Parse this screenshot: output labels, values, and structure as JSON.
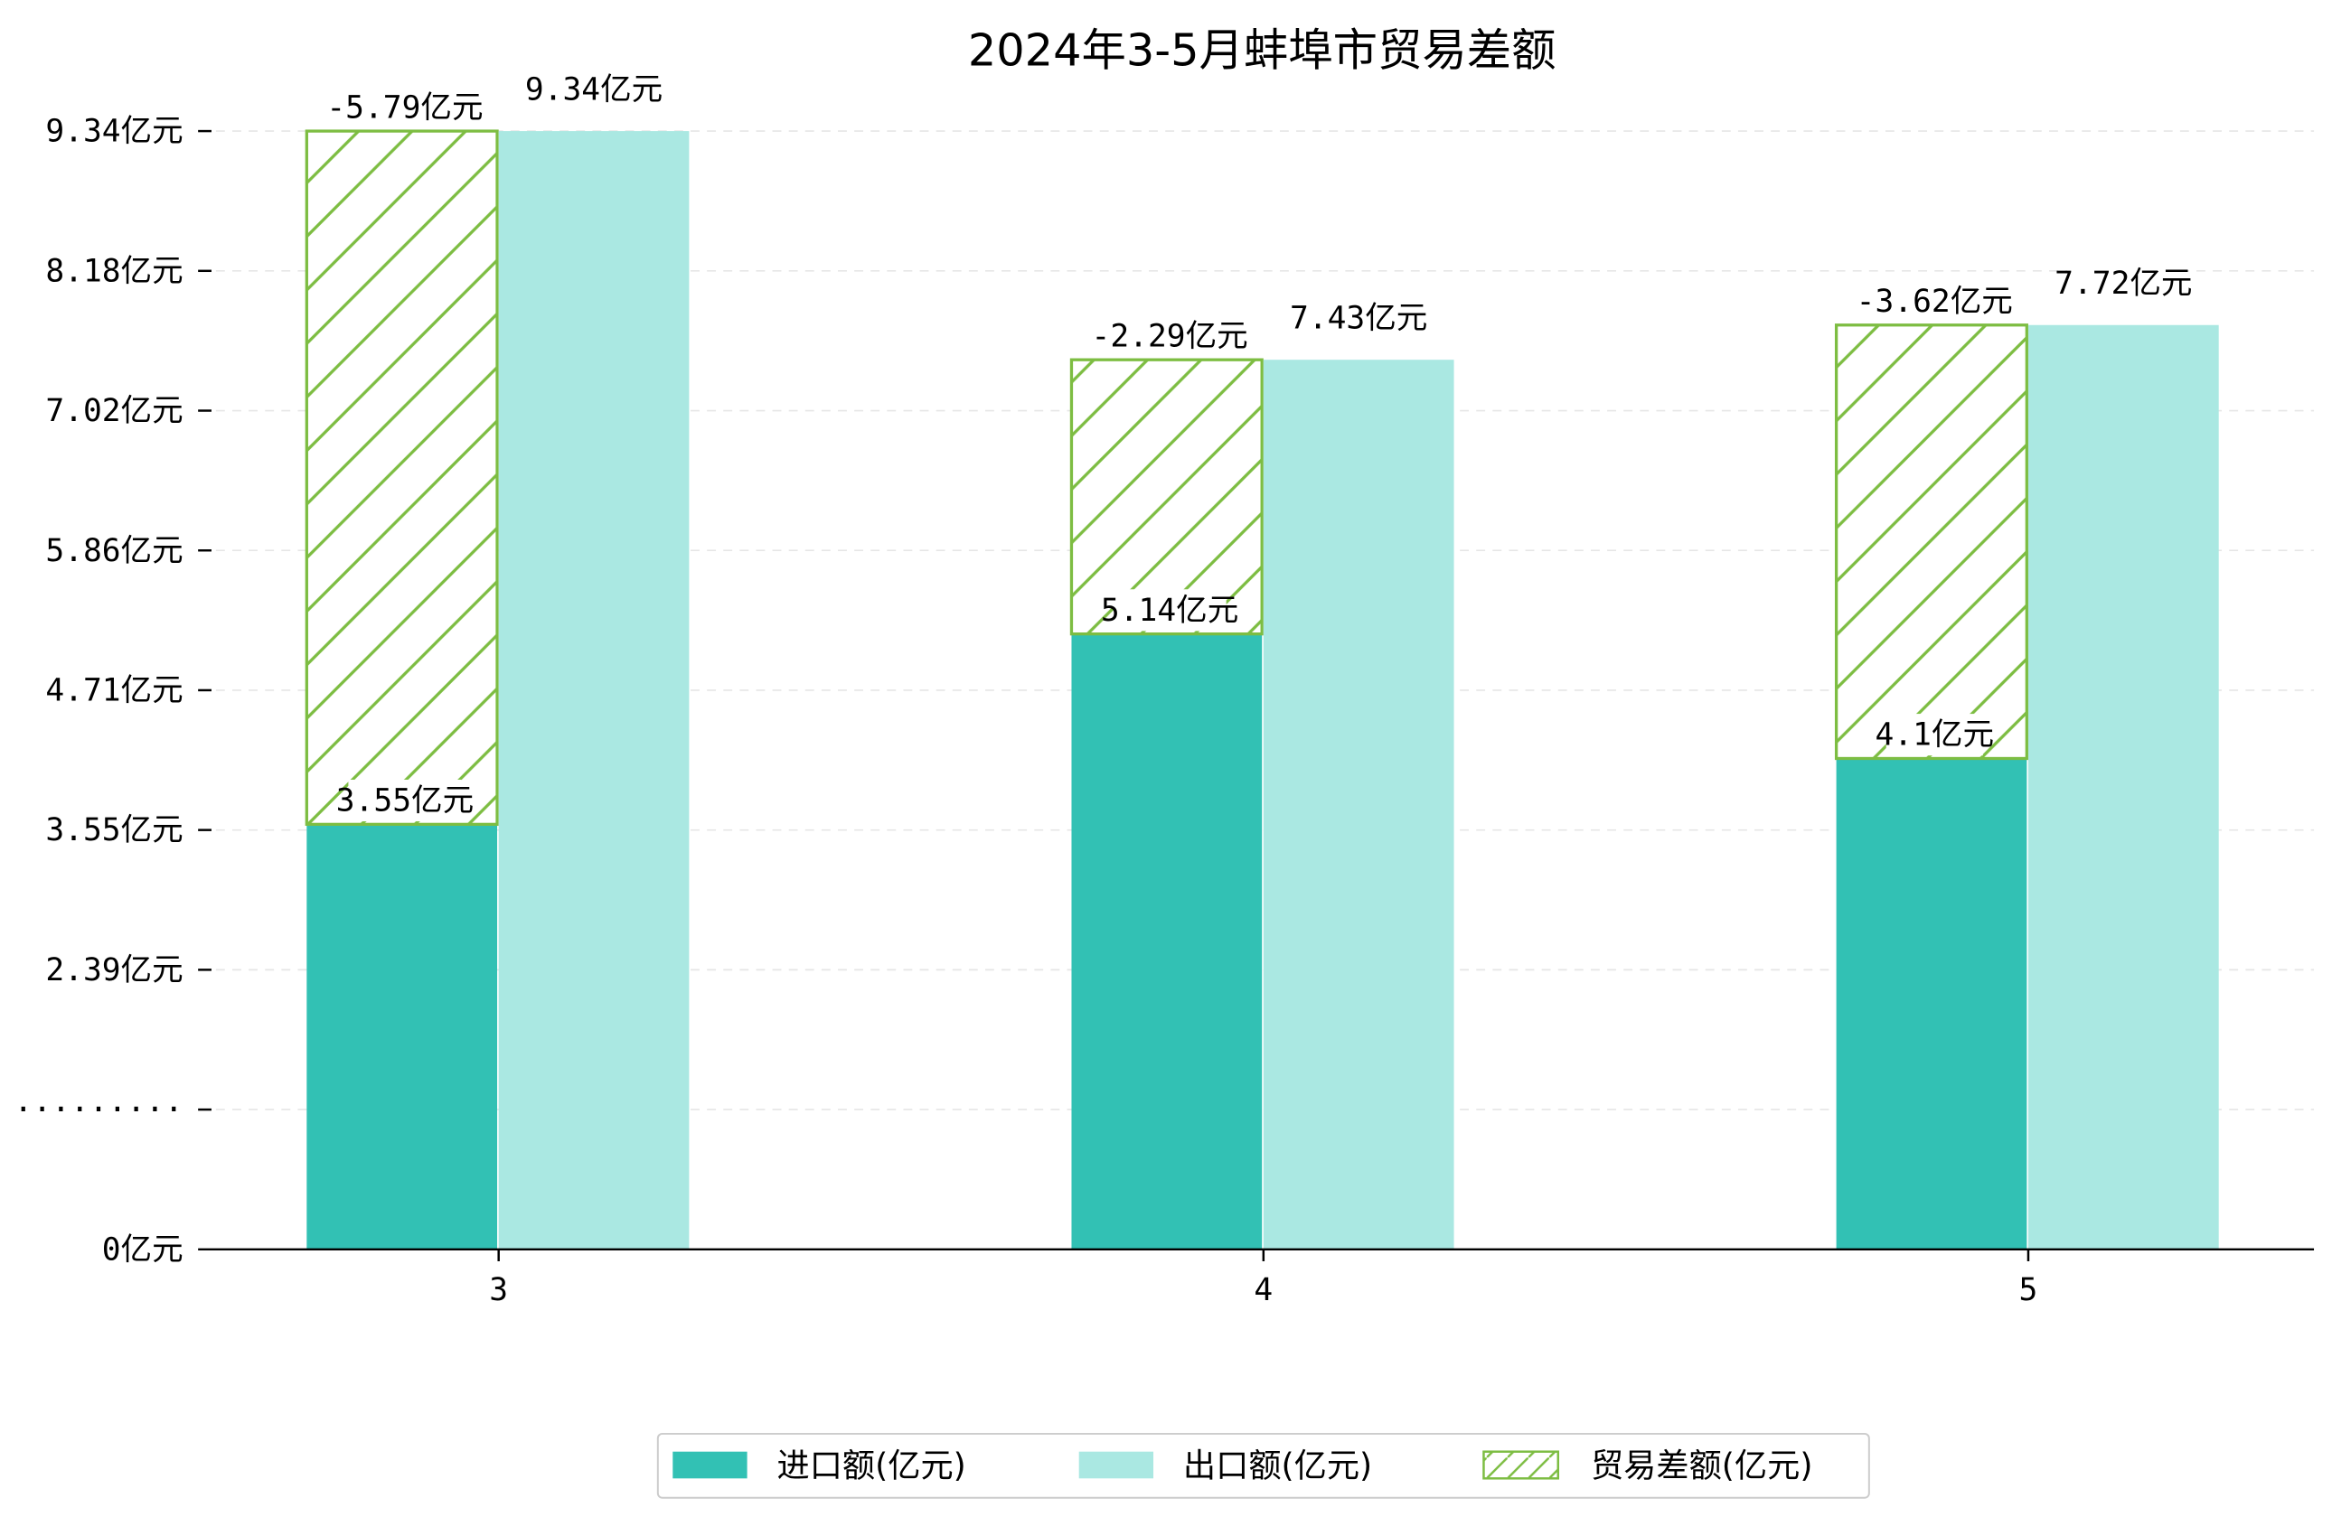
{
  "chart_data": {
    "type": "bar",
    "title": "2024年3-5月蚌埠市贸易差额",
    "categories": [
      "3",
      "4",
      "5"
    ],
    "series": [
      {
        "name": "进口额(亿元)",
        "values": [
          3.55,
          5.14,
          4.1
        ],
        "labels": [
          "3.55亿元",
          "5.14亿元",
          "4.1亿元"
        ],
        "color": "#32c1b4"
      },
      {
        "name": "出口额(亿元)",
        "values": [
          9.34,
          7.43,
          7.72
        ],
        "labels": [
          "9.34亿元",
          "7.43亿元",
          "7.72亿元"
        ],
        "color": "#aae8e2"
      },
      {
        "name": "贸易差额(亿元)",
        "values": [
          -5.79,
          -2.29,
          -3.62
        ],
        "labels": [
          "-5.79亿元",
          "-2.29亿元",
          "-3.62亿元"
        ],
        "color": "#7dbd42",
        "style": "hatched, stacked above 进口额"
      }
    ],
    "ytick_labels": [
      "0亿元",
      "·········",
      "2.39亿元",
      "3.55亿元",
      "4.71亿元",
      "5.86亿元",
      "7.02亿元",
      "8.18亿元",
      "9.34亿元"
    ],
    "ylim": [
      0,
      9.34
    ],
    "grid": true,
    "legend_position": "bottom-center",
    "xlabel": "",
    "ylabel": ""
  }
}
